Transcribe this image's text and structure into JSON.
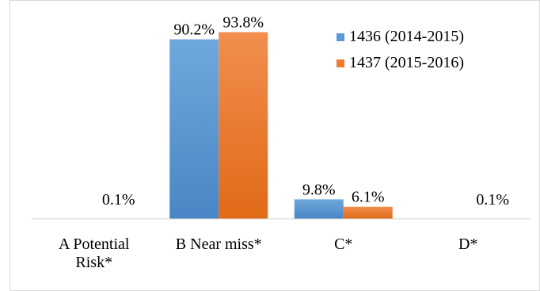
{
  "chart_data": {
    "type": "bar",
    "categories": [
      [
        "A Potential",
        "Risk*"
      ],
      [
        "B Near miss*"
      ],
      [
        "C*"
      ],
      [
        "D*"
      ]
    ],
    "series": [
      {
        "name": "1436 (2014-2015)",
        "values": [
          0,
          90.2,
          9.8,
          0
        ],
        "labels": [
          "",
          "90.2%",
          "9.8%",
          ""
        ],
        "color": "#5b9bd5"
      },
      {
        "name": "1437 (2015-2016)",
        "values": [
          0.1,
          93.8,
          6.1,
          0.1
        ],
        "labels": [
          "0.1%",
          "93.8%",
          "6.1%",
          "0.1%"
        ],
        "color": "#ed7d31"
      }
    ],
    "title": "",
    "xlabel": "",
    "ylabel": "",
    "ylim": [
      0,
      100
    ],
    "grid": false,
    "legend": "top-right"
  }
}
